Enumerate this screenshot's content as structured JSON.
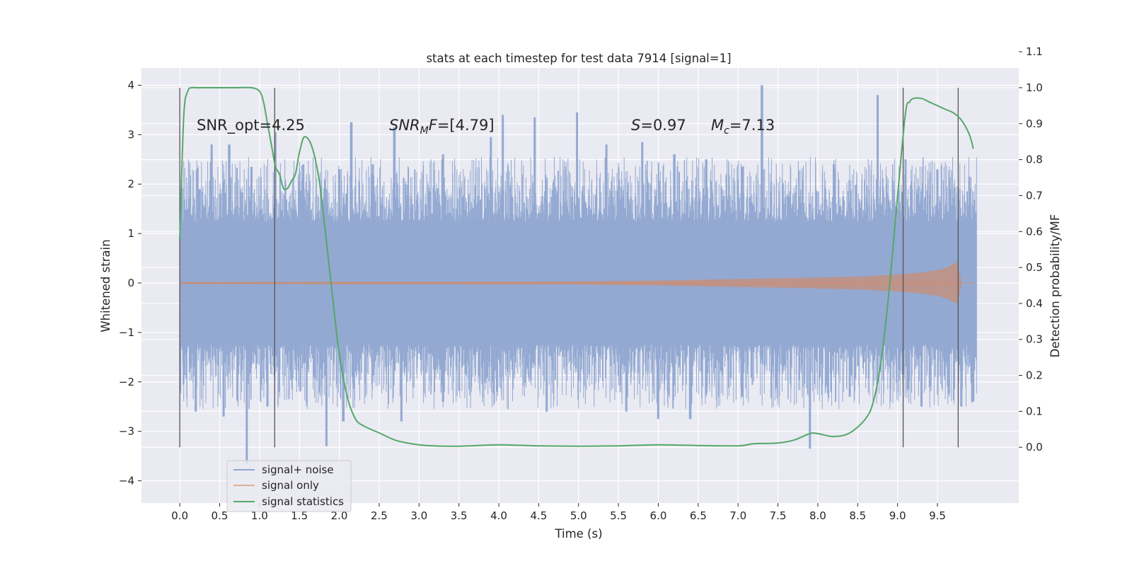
{
  "chart_data": {
    "type": "line",
    "title": "stats at each timestep for test data 7914 [signal=1]",
    "xlabel": "Time (s)",
    "ylabel": "Whitened strain",
    "y2label": "Detection probability/MF",
    "xlim": [
      -0.48,
      10.52
    ],
    "ylim": [
      -4.45,
      4.35
    ],
    "y2lim": [
      -0.155,
      1.055
    ],
    "xticks": [
      "0.0",
      "0.5",
      "1.0",
      "1.5",
      "2.0",
      "2.5",
      "3.0",
      "3.5",
      "4.0",
      "4.5",
      "5.0",
      "5.5",
      "6.0",
      "6.5",
      "7.0",
      "7.5",
      "8.0",
      "8.5",
      "9.0",
      "9.5"
    ],
    "yticks": [
      "−4",
      "−3",
      "−2",
      "−1",
      "0",
      "1",
      "2",
      "3",
      "4"
    ],
    "y2ticks": [
      "0.0",
      "0.1",
      "0.2",
      "0.3",
      "0.4",
      "0.5",
      "0.6",
      "0.7",
      "0.8",
      "0.9",
      "1.0",
      "1.1"
    ],
    "annotations": {
      "snr_opt": "SNR_opt=4.25",
      "snr_mf_base": "SNR",
      "snr_mf_sub": "M",
      "snr_mf_rest": "F=[4.79]",
      "s_sym": "S",
      "s_val": "=0.97",
      "mc_sym": "M",
      "mc_sub": "c",
      "mc_val": "=7.13"
    },
    "legend": {
      "placement": "lower-left",
      "entries": [
        "signal+ noise",
        "signal only",
        "signal statistics"
      ]
    },
    "colors": {
      "noise": "#8ea5d0",
      "signal": "#dd8452",
      "stat": "#55a868",
      "vline": "#555555",
      "panel": "#eaeaf2",
      "grid": "#ffffff"
    },
    "vlines_x": [
      0.0,
      1.19,
      9.07,
      9.76
    ],
    "noise_envelope": {
      "x_range": [
        0.0,
        9.99
      ],
      "core_abs": 1.25,
      "spikes_up": [
        [
          0.25,
          1.9
        ],
        [
          0.4,
          2.8
        ],
        [
          0.62,
          2.8
        ],
        [
          0.9,
          2.35
        ],
        [
          1.2,
          3.05
        ],
        [
          1.55,
          2.4
        ],
        [
          2.0,
          2.3
        ],
        [
          2.15,
          3.25
        ],
        [
          2.42,
          2.4
        ],
        [
          2.69,
          3.15
        ],
        [
          3.3,
          2.6
        ],
        [
          3.9,
          2.95
        ],
        [
          4.05,
          3.4
        ],
        [
          4.45,
          3.35
        ],
        [
          4.98,
          3.45
        ],
        [
          5.35,
          2.8
        ],
        [
          5.8,
          2.85
        ],
        [
          6.2,
          2.6
        ],
        [
          6.6,
          2.5
        ],
        [
          7.05,
          2.35
        ],
        [
          7.3,
          4.0
        ],
        [
          8.2,
          2.4
        ],
        [
          8.75,
          3.8
        ],
        [
          9.1,
          2.5
        ],
        [
          9.5,
          2.3
        ],
        [
          9.9,
          2.15
        ]
      ],
      "spikes_down": [
        [
          0.2,
          -2.6
        ],
        [
          0.55,
          -2.7
        ],
        [
          0.84,
          -3.65
        ],
        [
          1.1,
          -2.5
        ],
        [
          1.84,
          -3.3
        ],
        [
          2.05,
          -2.8
        ],
        [
          2.78,
          -2.8
        ],
        [
          3.3,
          -2.4
        ],
        [
          4.6,
          -2.6
        ],
        [
          5.6,
          -2.6
        ],
        [
          6.0,
          -2.75
        ],
        [
          6.4,
          -2.75
        ],
        [
          7.05,
          -2.3
        ],
        [
          7.9,
          -3.35
        ],
        [
          8.4,
          -2.3
        ],
        [
          9.3,
          -2.5
        ],
        [
          9.8,
          -2.5
        ],
        [
          9.95,
          -2.4
        ]
      ]
    },
    "series": [
      {
        "name": "signal statistics",
        "axis": "right",
        "x": [
          0.0,
          0.05,
          0.1,
          0.15,
          0.2,
          0.3,
          0.5,
          0.7,
          0.9,
          1.0,
          1.05,
          1.1,
          1.15,
          1.2,
          1.25,
          1.3,
          1.35,
          1.4,
          1.45,
          1.5,
          1.55,
          1.6,
          1.65,
          1.7,
          1.75,
          1.8,
          1.85,
          1.9,
          1.95,
          2.0,
          2.1,
          2.2,
          2.3,
          2.5,
          2.7,
          2.9,
          3.1,
          3.5,
          4.0,
          4.5,
          5.0,
          5.5,
          6.0,
          6.5,
          7.0,
          7.2,
          7.5,
          7.7,
          7.9,
          8.0,
          8.2,
          8.4,
          8.6,
          8.7,
          8.8,
          8.9,
          9.0,
          9.1,
          9.15,
          9.2,
          9.3,
          9.4,
          9.5,
          9.6,
          9.7,
          9.8,
          9.9,
          9.95
        ],
        "y": [
          0.58,
          0.92,
          0.99,
          1.0,
          1.0,
          1.0,
          1.0,
          1.0,
          1.0,
          0.99,
          0.96,
          0.9,
          0.84,
          0.78,
          0.76,
          0.72,
          0.72,
          0.74,
          0.76,
          0.82,
          0.86,
          0.86,
          0.84,
          0.8,
          0.74,
          0.65,
          0.55,
          0.45,
          0.35,
          0.26,
          0.14,
          0.08,
          0.06,
          0.04,
          0.02,
          0.01,
          0.005,
          0.003,
          0.007,
          0.004,
          0.003,
          0.004,
          0.007,
          0.005,
          0.004,
          0.01,
          0.012,
          0.02,
          0.038,
          0.038,
          0.03,
          0.04,
          0.08,
          0.13,
          0.25,
          0.45,
          0.7,
          0.93,
          0.96,
          0.97,
          0.97,
          0.96,
          0.95,
          0.94,
          0.93,
          0.91,
          0.87,
          0.83
        ]
      },
      {
        "name": "signal only",
        "axis": "left",
        "x": [
          0.0,
          5.0,
          6.0,
          7.0,
          8.0,
          8.5,
          9.0,
          9.3,
          9.5,
          9.6,
          9.7,
          9.75,
          9.77,
          9.8
        ],
        "amplitude": [
          0.02,
          0.03,
          0.05,
          0.08,
          0.11,
          0.13,
          0.17,
          0.21,
          0.26,
          0.3,
          0.38,
          0.42,
          0.25,
          0.05
        ]
      }
    ]
  }
}
